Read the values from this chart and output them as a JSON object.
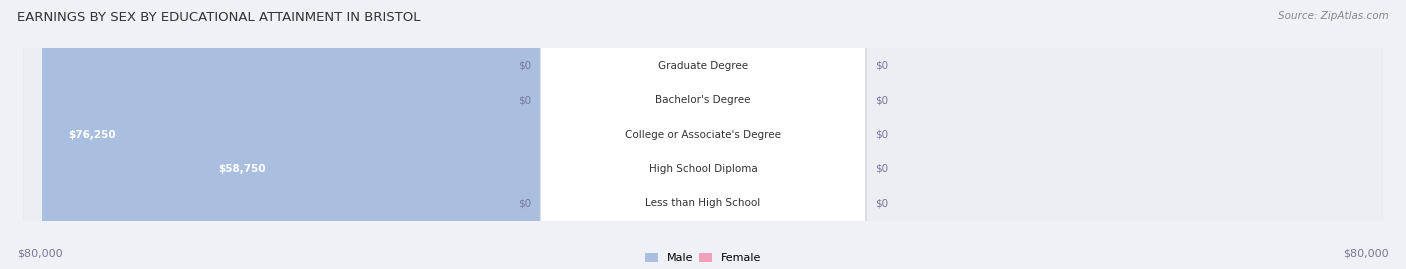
{
  "title": "EARNINGS BY SEX BY EDUCATIONAL ATTAINMENT IN BRISTOL",
  "source": "Source: ZipAtlas.com",
  "categories": [
    "Less than High School",
    "High School Diploma",
    "College or Associate's Degree",
    "Bachelor's Degree",
    "Graduate Degree"
  ],
  "male_values": [
    0,
    58750,
    76250,
    0,
    0
  ],
  "female_values": [
    0,
    0,
    0,
    0,
    0
  ],
  "max_scale": 80000,
  "male_color": "#aabfdf",
  "female_color": "#f0a0b8",
  "row_bg_colors": [
    "#ededf4",
    "#e4e4ed"
  ],
  "fig_bg_color": "#f0f0f7",
  "axis_label_color": "#777799",
  "title_color": "#333333",
  "center_label_bg": "#ffffff",
  "center_label_color": "#333333",
  "xlabel_left": "$80,000",
  "xlabel_right": "$80,000",
  "figsize": [
    14.06,
    2.69
  ],
  "dpi": 100
}
